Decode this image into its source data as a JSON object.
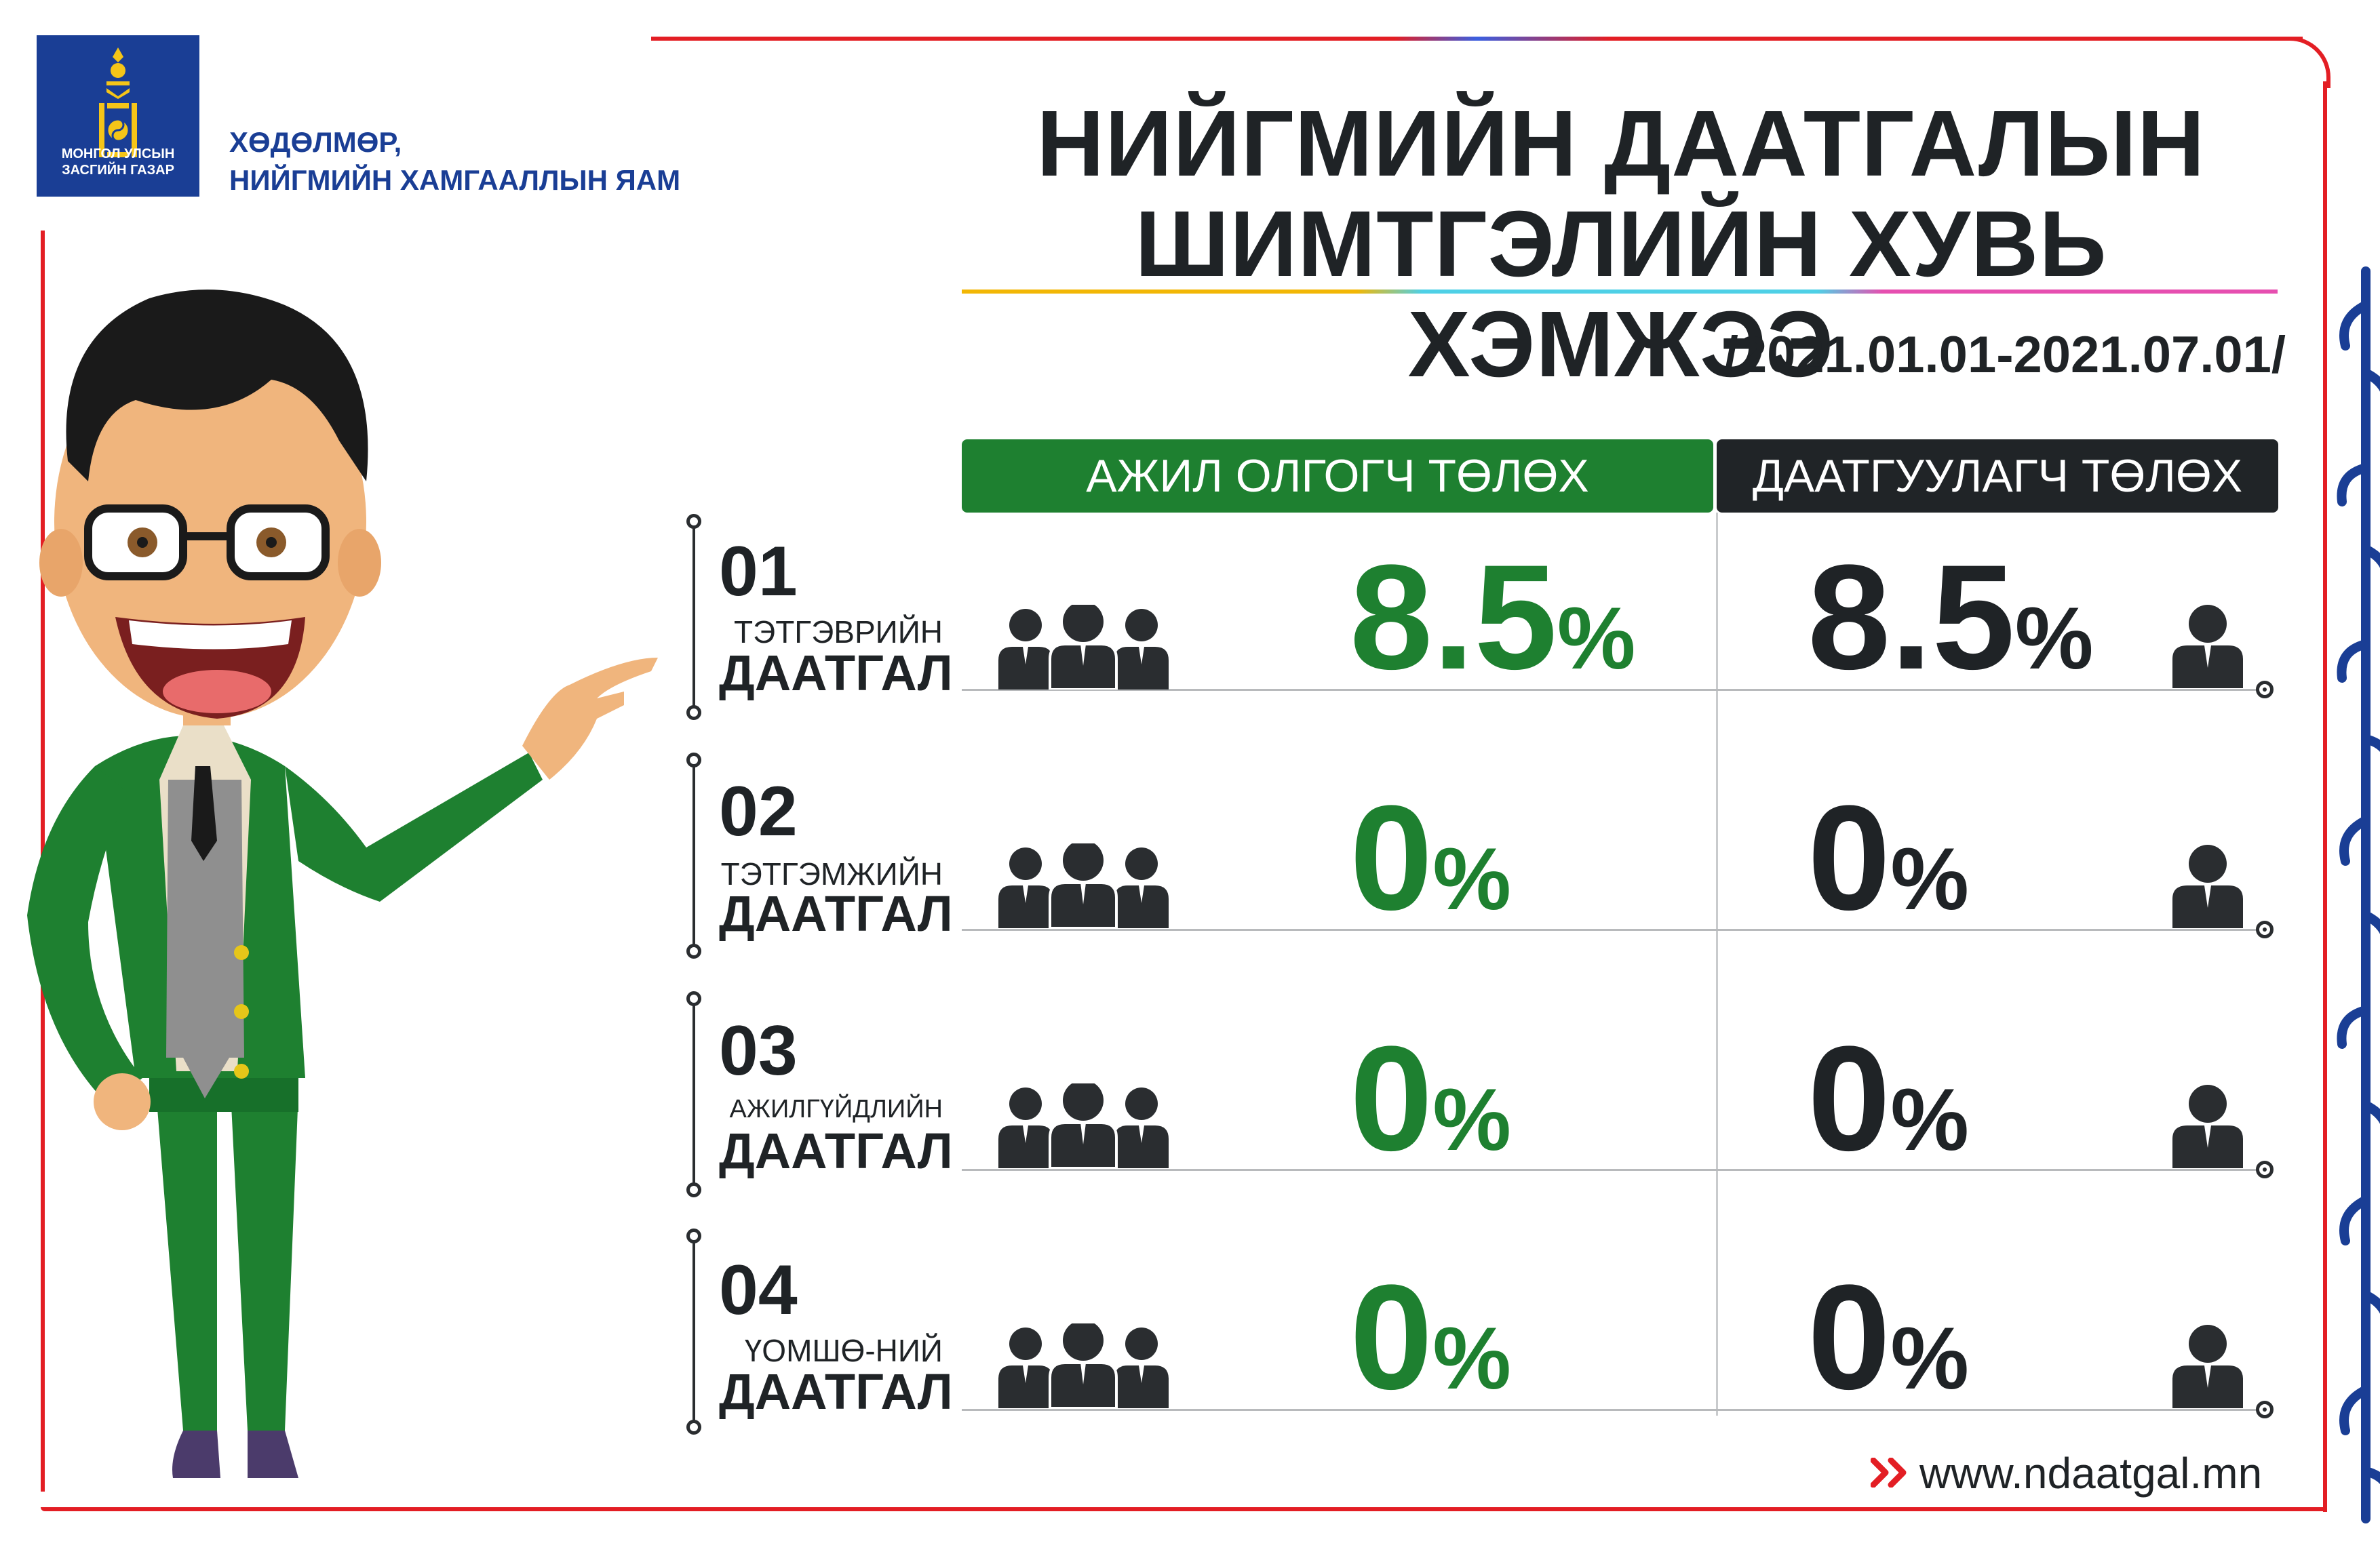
{
  "logo": {
    "line1": "МОНГОЛ УЛСЫН",
    "line2": "ЗАСГИЙН ГАЗАР",
    "icon": "soyombo-icon"
  },
  "ministry": {
    "line1": "ХӨДӨЛМӨР,",
    "line2": "НИЙГМИЙН ХАМГААЛЛЫН ЯАМ"
  },
  "title": {
    "line1": "НИЙГМИЙН ДААТГАЛЫН",
    "line2": "ШИМТГЭЛИЙН ХУВЬ ХЭМЖЭЭ"
  },
  "period": "/2021.01.01-2021.07.01/",
  "headers": {
    "employer": "АЖИЛ ОЛГОГЧ ТӨЛӨХ",
    "insured": "ДААТГУУЛАГЧ ТӨЛӨХ"
  },
  "rows": [
    {
      "num": "01",
      "small": "ТЭТГЭВРИЙН",
      "big": "ДААТГАЛ",
      "employer": "8.5",
      "insured": "8.5",
      "unit": "%"
    },
    {
      "num": "02",
      "small": "ТЭТГЭМЖИЙН",
      "big": "ДААТГАЛ",
      "employer": "0",
      "insured": "0",
      "unit": "%"
    },
    {
      "num": "03",
      "small": "АЖИЛГҮЙДЛИЙН",
      "big": "ДААТГАЛ",
      "employer": "0",
      "insured": "0",
      "unit": "%"
    },
    {
      "num": "04",
      "small": "ҮОМШӨ-НИЙ",
      "big": "ДААТГАЛ",
      "employer": "0",
      "insured": "0",
      "unit": "%"
    }
  ],
  "website": "www.ndaatgal.mn",
  "icons": {
    "group": "people-group-icon",
    "person": "person-icon",
    "arrow": "double-chevron-right-icon"
  },
  "colors": {
    "green": "#1e8030",
    "dark": "#202427",
    "frame": "#e31e24",
    "logo": "#1a3e95"
  }
}
